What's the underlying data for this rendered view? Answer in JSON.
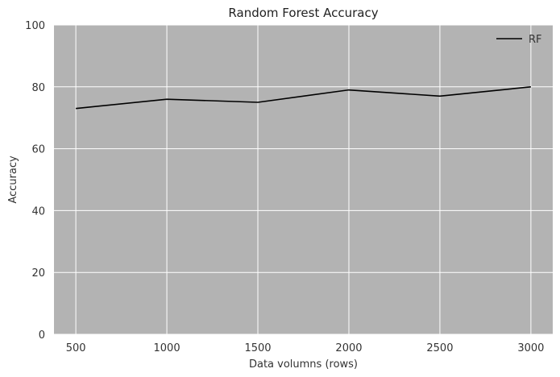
{
  "chart_data": {
    "type": "line",
    "title": "Random Forest Accuracy",
    "xlabel": "Data volumns (rows)",
    "ylabel": "Accuracy",
    "x": [
      500,
      1000,
      1500,
      2000,
      2500,
      3000
    ],
    "x_ticks": [
      "500",
      "1000",
      "1500",
      "2000",
      "2500",
      "3000"
    ],
    "y_ticks": [
      "0",
      "20",
      "40",
      "60",
      "80",
      "100"
    ],
    "xlim": [
      380,
      3120
    ],
    "ylim": [
      0,
      100
    ],
    "grid": true,
    "legend_position": "top-right",
    "background_color": "#b3b3b3",
    "grid_color": "#ffffff",
    "series": [
      {
        "name": "RF",
        "color": "#000000",
        "values": [
          73,
          76,
          75,
          79,
          77,
          80
        ]
      }
    ]
  }
}
